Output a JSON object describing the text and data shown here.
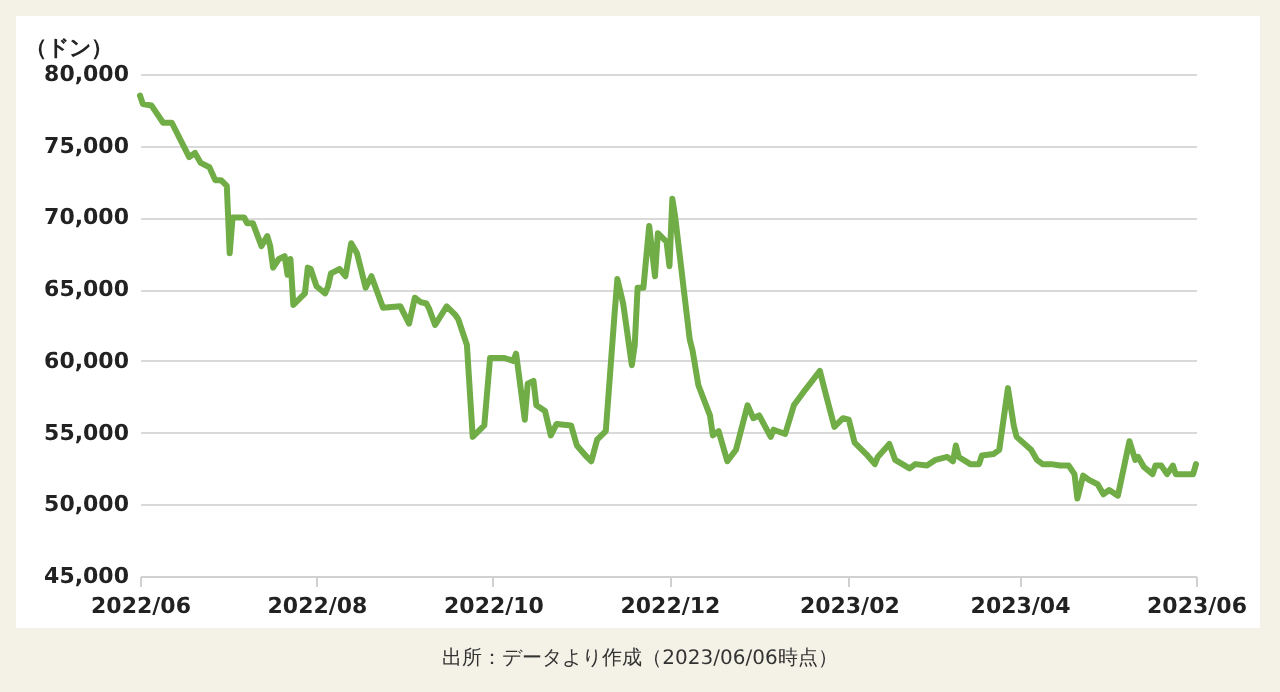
{
  "chart_data": {
    "type": "line",
    "ylabel": "（ドン）",
    "annotations": [
      "出所：データより作成（2023/06/06時点）"
    ],
    "x": [
      "2022-06-01",
      "2022-06-02",
      "2022-06-05",
      "2022-06-09",
      "2022-06-12",
      "2022-06-16",
      "2022-06-18",
      "2022-06-20",
      "2022-06-22",
      "2022-06-25",
      "2022-06-27",
      "2022-06-29",
      "2022-07-01",
      "2022-07-02",
      "2022-07-03",
      "2022-07-07",
      "2022-07-08",
      "2022-07-10",
      "2022-07-13",
      "2022-07-15",
      "2022-07-16",
      "2022-07-17",
      "2022-07-19",
      "2022-07-21",
      "2022-07-22",
      "2022-07-23",
      "2022-07-24",
      "2022-07-28",
      "2022-07-29",
      "2022-07-30",
      "2022-08-01",
      "2022-08-04",
      "2022-08-05",
      "2022-08-06",
      "2022-08-09",
      "2022-08-11",
      "2022-08-13",
      "2022-08-15",
      "2022-08-18",
      "2022-08-20",
      "2022-08-24",
      "2022-08-30",
      "2022-09-02",
      "2022-09-04",
      "2022-09-06",
      "2022-09-08",
      "2022-09-09",
      "2022-09-11",
      "2022-09-15",
      "2022-09-18",
      "2022-09-19",
      "2022-09-22",
      "2022-09-24",
      "2022-09-28",
      "2022-09-30",
      "2022-10-05",
      "2022-10-08",
      "2022-10-09",
      "2022-10-12",
      "2022-10-13",
      "2022-10-15",
      "2022-10-16",
      "2022-10-19",
      "2022-10-21",
      "2022-10-23",
      "2022-10-28",
      "2022-10-30",
      "2022-11-02",
      "2022-11-04",
      "2022-11-06",
      "2022-11-09",
      "2022-11-12",
      "2022-11-13",
      "2022-11-15",
      "2022-11-18",
      "2022-11-19",
      "2022-11-20",
      "2022-11-22",
      "2022-11-24",
      "2022-11-26",
      "2022-11-27",
      "2022-11-30",
      "2022-12-01",
      "2022-12-02",
      "2022-12-03",
      "2022-12-08",
      "2022-12-09",
      "2022-12-11",
      "2022-12-15",
      "2022-12-16",
      "2022-12-18",
      "2022-12-21",
      "2022-12-24",
      "2022-12-28",
      "2022-12-30",
      "2023-01-01",
      "2023-01-05",
      "2023-01-06",
      "2023-01-10",
      "2023-01-13",
      "2023-01-17",
      "2023-01-22",
      "2023-01-24",
      "2023-01-27",
      "2023-01-30",
      "2023-02-01",
      "2023-02-03",
      "2023-02-07",
      "2023-02-10",
      "2023-02-11",
      "2023-02-15",
      "2023-02-17",
      "2023-02-22",
      "2023-02-24",
      "2023-02-28",
      "2023-03-03",
      "2023-03-07",
      "2023-03-09",
      "2023-03-10",
      "2023-03-11",
      "2023-03-15",
      "2023-03-18",
      "2023-03-19",
      "2023-03-23",
      "2023-03-25",
      "2023-03-28",
      "2023-03-30",
      "2023-03-31",
      "2023-04-05",
      "2023-04-07",
      "2023-04-09",
      "2023-04-12",
      "2023-04-15",
      "2023-04-18",
      "2023-04-20",
      "2023-04-21",
      "2023-04-23",
      "2023-04-25",
      "2023-04-28",
      "2023-04-30",
      "2023-05-02",
      "2023-05-05",
      "2023-05-09",
      "2023-05-11",
      "2023-05-12",
      "2023-05-14",
      "2023-05-17",
      "2023-05-18",
      "2023-05-20",
      "2023-05-22",
      "2023-05-24",
      "2023-05-25",
      "2023-05-28",
      "2023-05-31",
      "2023-06-01"
    ],
    "series": [
      {
        "color": "#70ad47",
        "values": [
          78500,
          77900,
          77800,
          76600,
          76600,
          75000,
          74200,
          74500,
          73800,
          73500,
          72600,
          72600,
          72200,
          67500,
          70000,
          70000,
          69600,
          69600,
          68000,
          68700,
          68000,
          66500,
          67100,
          67300,
          66000,
          67100,
          63900,
          64700,
          66500,
          66400,
          65200,
          64700,
          65200,
          66100,
          66400,
          65900,
          68200,
          67500,
          65100,
          65900,
          63700,
          63800,
          62600,
          64400,
          64100,
          64000,
          63600,
          62500,
          63800,
          63200,
          62900,
          61100,
          54700,
          55500,
          60200,
          60200,
          60000,
          60500,
          55900,
          58400,
          58600,
          56900,
          56500,
          54800,
          55600,
          55500,
          54100,
          53400,
          53000,
          54500,
          55100,
          63200,
          65700,
          64000,
          59700,
          61100,
          65100,
          65100,
          69400,
          65900,
          68900,
          68300,
          66600,
          71300,
          70000,
          61500,
          60700,
          58300,
          56200,
          54800,
          55100,
          53000,
          53800,
          56900,
          56000,
          56200,
          54700,
          55200,
          54900,
          56900,
          58000,
          59300,
          57700,
          55400,
          56000,
          55900,
          54300,
          53500,
          52800,
          53300,
          54200,
          53100,
          52500,
          52800,
          52700,
          53100,
          53300,
          53000,
          54100,
          53300,
          52800,
          52800,
          53400,
          53500,
          53800,
          58100,
          55500,
          54700,
          53800,
          53100,
          52800,
          52800,
          52700,
          52700,
          52100,
          50400,
          52000,
          51700,
          51400,
          50700,
          51000,
          50600,
          54400,
          53100,
          53300,
          52600,
          52100,
          52700,
          52700,
          52100,
          52700,
          52100,
          52100,
          52100,
          52800
        ]
      }
    ],
    "xlim": [
      "2022-06",
      "2023-06"
    ],
    "xticks": [
      {
        "value": "2022-06",
        "label": "2022/06"
      },
      {
        "value": "2022-08",
        "label": "2022/08"
      },
      {
        "value": "2022-10",
        "label": "2022/10"
      },
      {
        "value": "2022-12",
        "label": "2022/12"
      },
      {
        "value": "2023-02",
        "label": "2023/02"
      },
      {
        "value": "2023-04",
        "label": "2023/04"
      },
      {
        "value": "2023-06",
        "label": "2023/06"
      }
    ],
    "ylim": [
      45000,
      80000
    ],
    "yticks": [
      {
        "value": 45000,
        "label": "45,000"
      },
      {
        "value": 50000,
        "label": "50,000"
      },
      {
        "value": 55000,
        "label": "55,000"
      },
      {
        "value": 60000,
        "label": "60,000"
      },
      {
        "value": 65000,
        "label": "65,000"
      },
      {
        "value": 70000,
        "label": "70,000"
      },
      {
        "value": 75000,
        "label": "75,000"
      },
      {
        "value": 80000,
        "label": "80,000"
      }
    ],
    "grid": "y"
  }
}
